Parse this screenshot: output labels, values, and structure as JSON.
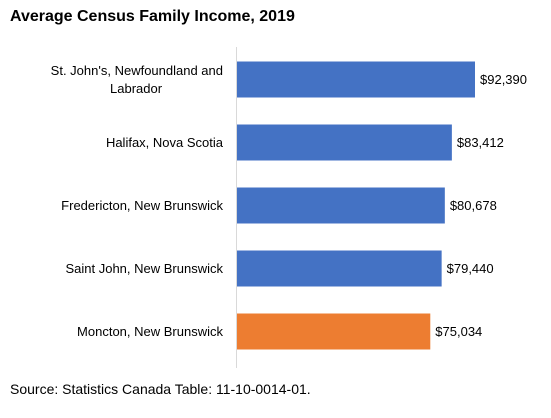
{
  "chart_data": {
    "type": "bar",
    "orientation": "horizontal",
    "title": "Average Census Family Income, 2019",
    "categories": [
      [
        "St. John's, Newfoundland and",
        "Labrador"
      ],
      [
        "Halifax, Nova Scotia"
      ],
      [
        "Fredericton, New Brunswick"
      ],
      [
        "Saint John, New Brunswick"
      ],
      [
        "Moncton, New Brunswick"
      ]
    ],
    "values": [
      92390,
      83412,
      80678,
      79440,
      75034
    ],
    "data_labels": [
      "$92,390",
      "$83,412",
      "$80,678",
      "$79,440",
      "$75,034"
    ],
    "bar_colors": [
      "#4472C4",
      "#4472C4",
      "#4472C4",
      "#4472C4",
      "#ED7D31"
    ],
    "xlim": [
      0,
      100000
    ],
    "grid": false,
    "xlabel": "",
    "ylabel": ""
  },
  "footer": {
    "source": "Source: Statistics Canada Table: 11-10-0014-01."
  }
}
